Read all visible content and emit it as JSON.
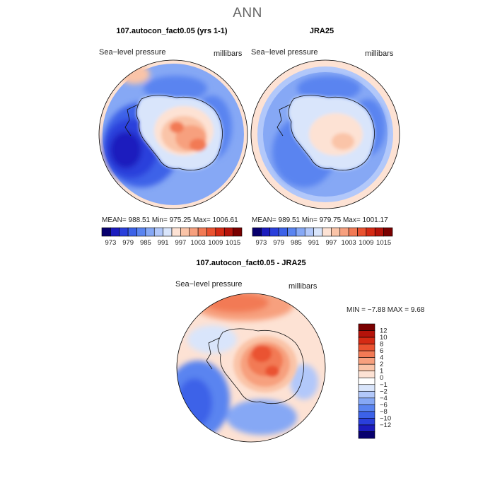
{
  "figure": {
    "title": "ANN"
  },
  "panels": {
    "model": {
      "heading": "107.autocon_fact0.05 (yrs 1-1)",
      "variable": "Sea−level pressure",
      "units": "millibars",
      "stats": "MEAN=  988.51    Min=  975.25    Max=  1006.61"
    },
    "obs": {
      "heading": "JRA25",
      "variable": "Sea−level pressure",
      "units": "millibars",
      "stats": "MEAN=  989.51    Min=  979.75    Max=  1001.17"
    },
    "diff": {
      "heading": "107.autocon_fact0.05 - JRA25",
      "variable": "Sea−level pressure",
      "units": "millibars",
      "stats": "MIN =   −7.88  MAX =    9.68"
    }
  },
  "colorbar_abs": {
    "colors": [
      "#08006e",
      "#1c1cbe",
      "#2a3fdb",
      "#3c62e8",
      "#5a84f0",
      "#86a8f5",
      "#b2c8fa",
      "#d9e5fb",
      "#fde2d4",
      "#fac4a8",
      "#f7a07e",
      "#f27a55",
      "#ea5230",
      "#d52a14",
      "#b5130a",
      "#7a0000"
    ],
    "tick_labels": [
      "973",
      "979",
      "985",
      "991",
      "997",
      "1003",
      "1009",
      "1015"
    ]
  },
  "colorbar_diff": {
    "colors": [
      "#7a0000",
      "#b5130a",
      "#d52a14",
      "#ea5230",
      "#f27a55",
      "#f7a07e",
      "#fac4a8",
      "#fde2d4",
      "#ffffff",
      "#d9e5fb",
      "#b2c8fa",
      "#86a8f5",
      "#5a84f0",
      "#3c62e8",
      "#2a3fdb",
      "#1c1cbe",
      "#08006e"
    ],
    "tick_labels": [
      "12",
      "10",
      "8",
      "6",
      "4",
      "2",
      "1",
      "0",
      "−1",
      "−2",
      "−4",
      "−6",
      "−8",
      "−10",
      "−12"
    ]
  }
}
